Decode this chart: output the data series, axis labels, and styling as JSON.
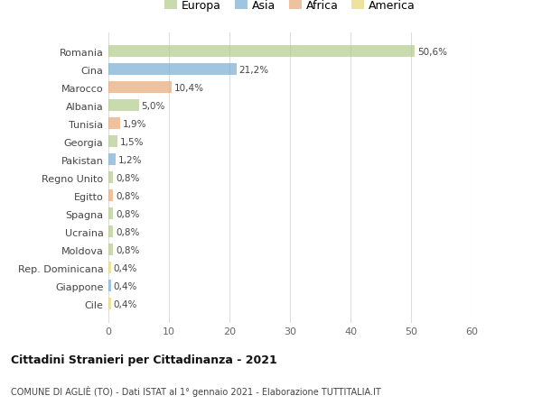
{
  "countries": [
    "Romania",
    "Cina",
    "Marocco",
    "Albania",
    "Tunisia",
    "Georgia",
    "Pakistan",
    "Regno Unito",
    "Egitto",
    "Spagna",
    "Ucraina",
    "Moldova",
    "Rep. Dominicana",
    "Giappone",
    "Cile"
  ],
  "values": [
    50.6,
    21.2,
    10.4,
    5.0,
    1.9,
    1.5,
    1.2,
    0.8,
    0.8,
    0.8,
    0.8,
    0.8,
    0.4,
    0.4,
    0.4
  ],
  "labels": [
    "50,6%",
    "21,2%",
    "10,4%",
    "5,0%",
    "1,9%",
    "1,5%",
    "1,2%",
    "0,8%",
    "0,8%",
    "0,8%",
    "0,8%",
    "0,8%",
    "0,4%",
    "0,4%",
    "0,4%"
  ],
  "continents": [
    "Europa",
    "Asia",
    "Africa",
    "Europa",
    "Africa",
    "Europa",
    "Asia",
    "Europa",
    "Africa",
    "Europa",
    "Europa",
    "Europa",
    "America",
    "Asia",
    "America"
  ],
  "colors": {
    "Europa": "#b5cc8e",
    "Asia": "#7bafd4",
    "Africa": "#e8aa7a",
    "America": "#e8d87a"
  },
  "legend_order": [
    "Europa",
    "Asia",
    "Africa",
    "America"
  ],
  "legend_colors": [
    "#b5cc8e",
    "#7bafd4",
    "#e8aa7a",
    "#e8d87a"
  ],
  "xlim": [
    0,
    60
  ],
  "xticks": [
    0,
    10,
    20,
    30,
    40,
    50,
    60
  ],
  "title": "Cittadini Stranieri per Cittadinanza - 2021",
  "subtitle": "COMUNE DI AGLIÈ (TO) - Dati ISTAT al 1° gennaio 2021 - Elaborazione TUTTITALIA.IT",
  "bg_color": "#ffffff",
  "bar_alpha": 0.72,
  "grid_color": "#dddddd"
}
